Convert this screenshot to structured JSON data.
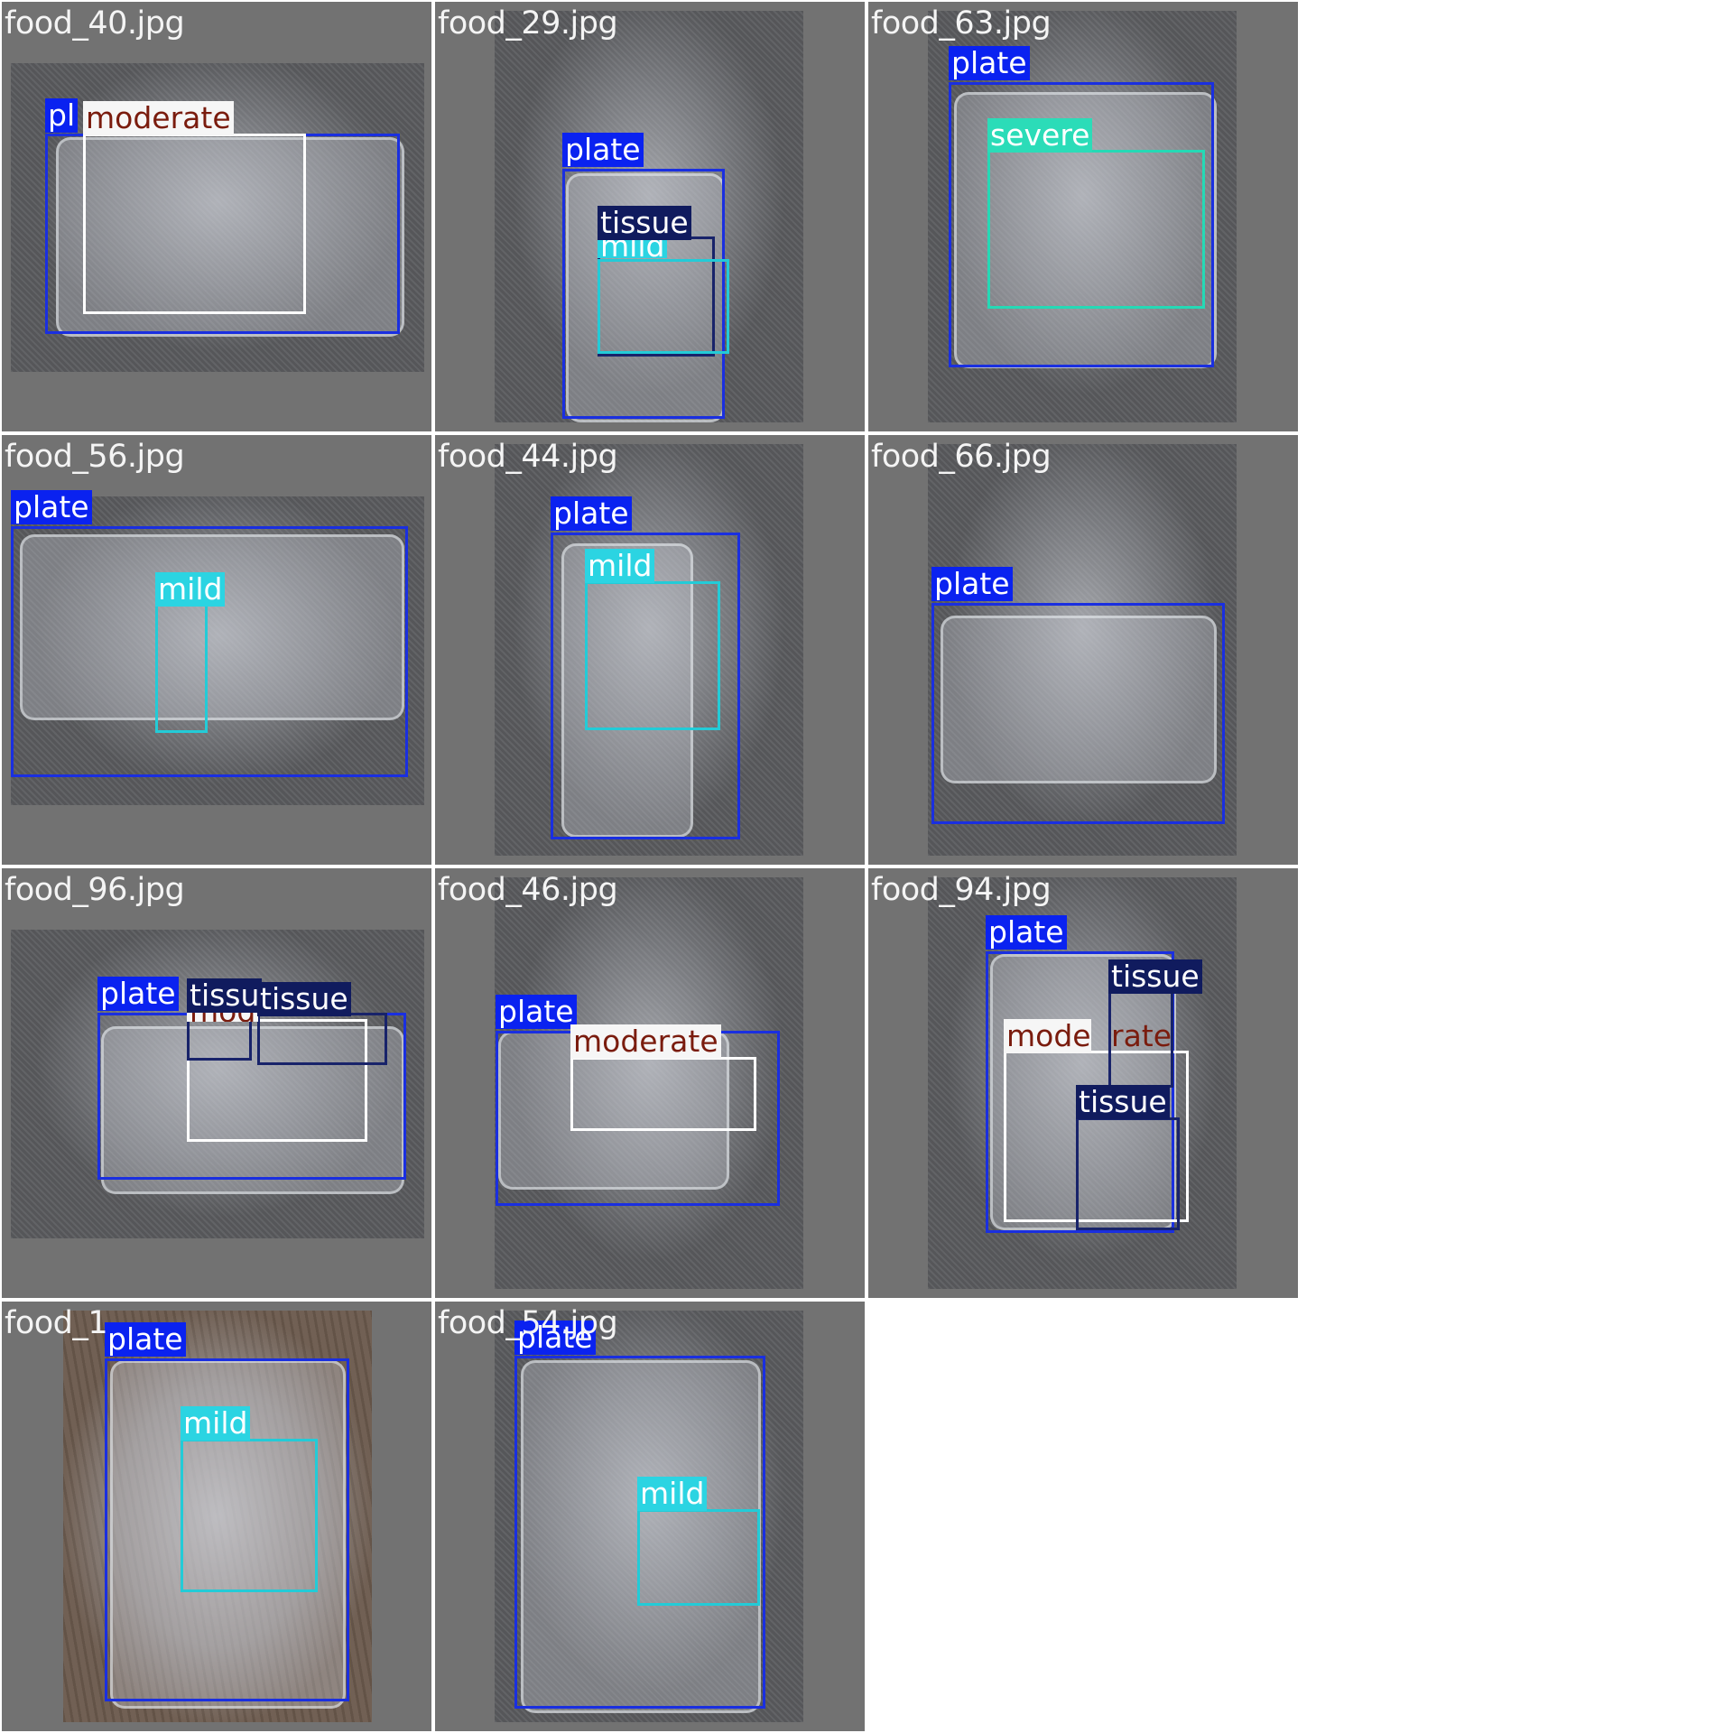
{
  "labels": {
    "plate": "plate",
    "moderate": "moderate",
    "mild": "mild",
    "tissue": "tissue",
    "severe": "severe",
    "pl": "pl",
    "mild_clip": "mild",
    "tissu": "tissu",
    "mod": "mod",
    "moderate_a": "mode",
    "moderate_b": "rate"
  },
  "tiles": [
    {
      "title": "food_40.jpg"
    },
    {
      "title": "food_29.jpg"
    },
    {
      "title": "food_63.jpg"
    },
    {
      "title": "food_56.jpg"
    },
    {
      "title": "food_44.jpg"
    },
    {
      "title": "food_66.jpg"
    },
    {
      "title": "food_96.jpg"
    },
    {
      "title": "food_46.jpg"
    },
    {
      "title": "food_94.jpg"
    },
    {
      "title": "food_1"
    },
    {
      "title": "food_54.jpg"
    }
  ],
  "colors": {
    "plate": "#0a22f0",
    "moderate": "#f6f6f6",
    "mild": "#2bd4e2",
    "tissue": "#101b5e",
    "severe": "#2bdcb8",
    "tile_bg": "#727272"
  }
}
